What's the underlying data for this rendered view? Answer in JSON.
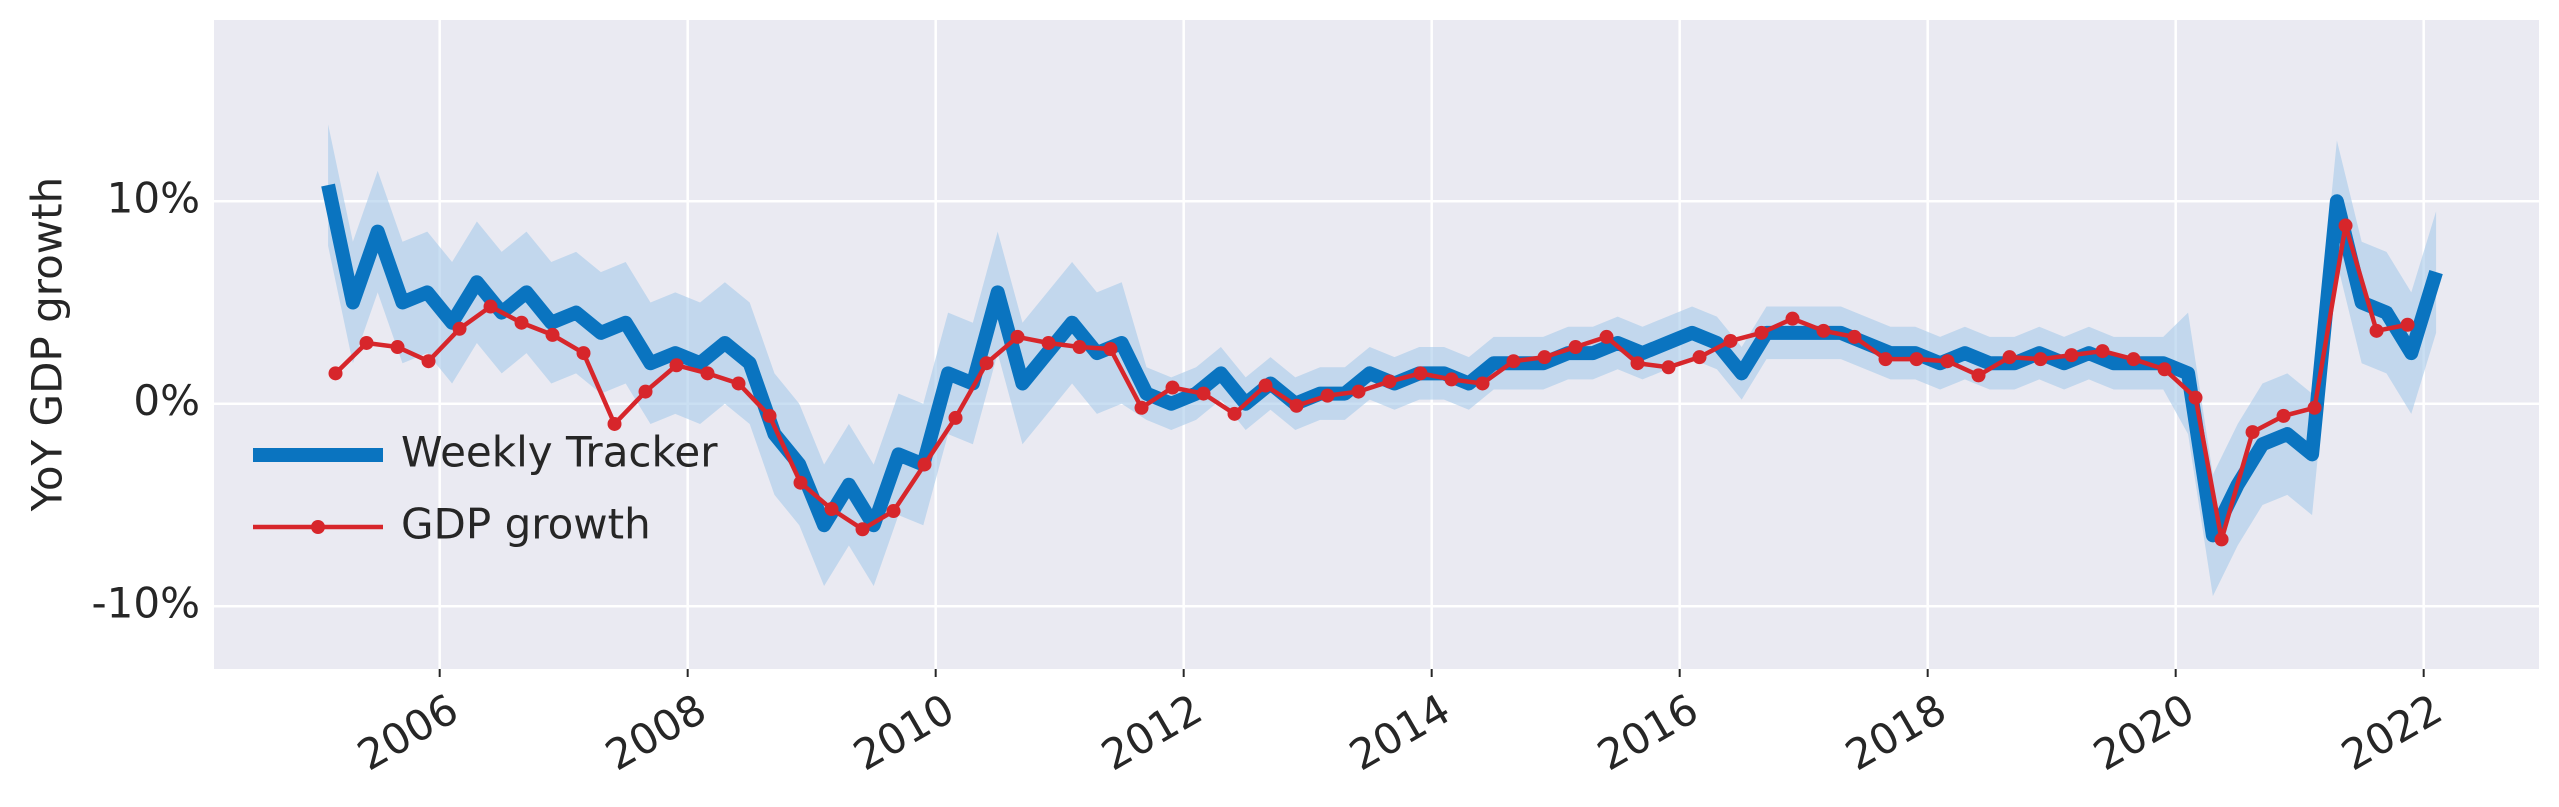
{
  "chart_data": {
    "type": "line",
    "y_label": "YoY GDP growth",
    "xlim": [
      2004.18,
      2022.93
    ],
    "xticks": [
      2006,
      2008,
      2010,
      2012,
      2014,
      2016,
      2018,
      2020,
      2022
    ],
    "ylim": [
      -13.1,
      18.95
    ],
    "yticks": [
      {
        "value": -10,
        "label": "-10%"
      },
      {
        "value": 0,
        "label": "0%"
      },
      {
        "value": 10,
        "label": "10%"
      }
    ],
    "grid": true,
    "legend": "lower left",
    "series": [
      {
        "name": "Weekly Tracker",
        "color": "#0a74c0",
        "band_color": "#a6c9ea",
        "x": [
          2005.1,
          2005.3,
          2005.5,
          2005.7,
          2005.9,
          2006.1,
          2006.3,
          2006.5,
          2006.7,
          2006.9,
          2007.1,
          2007.3,
          2007.5,
          2007.7,
          2007.9,
          2008.1,
          2008.3,
          2008.5,
          2008.7,
          2008.9,
          2009.1,
          2009.3,
          2009.5,
          2009.7,
          2009.9,
          2010.1,
          2010.3,
          2010.5,
          2010.7,
          2010.9,
          2011.1,
          2011.3,
          2011.5,
          2011.7,
          2011.9,
          2012.1,
          2012.3,
          2012.5,
          2012.7,
          2012.9,
          2013.1,
          2013.3,
          2013.5,
          2013.7,
          2013.9,
          2014.1,
          2014.3,
          2014.5,
          2014.7,
          2014.9,
          2015.1,
          2015.3,
          2015.5,
          2015.7,
          2015.9,
          2016.1,
          2016.3,
          2016.5,
          2016.7,
          2016.9,
          2017.1,
          2017.3,
          2017.5,
          2017.7,
          2017.9,
          2018.1,
          2018.3,
          2018.5,
          2018.7,
          2018.9,
          2019.1,
          2019.3,
          2019.5,
          2019.7,
          2019.9,
          2020.1,
          2020.3,
          2020.5,
          2020.7,
          2020.9,
          2021.1,
          2021.3,
          2021.5,
          2021.7,
          2021.9,
          2022.1
        ],
        "values": [
          10.8,
          5.0,
          8.5,
          5.0,
          5.5,
          4.0,
          6.0,
          4.5,
          5.5,
          4.0,
          4.5,
          3.5,
          4.0,
          2.0,
          2.5,
          2.0,
          3.0,
          2.0,
          -1.5,
          -3.0,
          -6.0,
          -4.0,
          -6.0,
          -2.5,
          -3.0,
          1.5,
          1.0,
          5.5,
          1.0,
          2.5,
          4.0,
          2.5,
          3.0,
          0.5,
          0.0,
          0.5,
          1.5,
          0.0,
          1.0,
          0.0,
          0.5,
          0.5,
          1.5,
          1.0,
          1.5,
          1.5,
          1.0,
          2.0,
          2.0,
          2.0,
          2.5,
          2.5,
          3.0,
          2.5,
          3.0,
          3.5,
          3.0,
          1.5,
          3.5,
          3.5,
          3.5,
          3.5,
          3.0,
          2.5,
          2.5,
          2.0,
          2.5,
          2.0,
          2.0,
          2.5,
          2.0,
          2.5,
          2.0,
          2.0,
          2.0,
          1.5,
          -6.5,
          -4.0,
          -2.0,
          -1.5,
          -2.5,
          10.0,
          5.0,
          4.5,
          2.5,
          6.5
        ],
        "lower": [
          7.8,
          2.0,
          5.5,
          2.0,
          2.5,
          1.0,
          3.0,
          1.5,
          2.5,
          1.0,
          1.5,
          0.5,
          1.0,
          -1.0,
          -0.5,
          -1.0,
          0.0,
          -1.0,
          -4.5,
          -6.0,
          -9.0,
          -7.0,
          -9.0,
          -5.5,
          -6.0,
          -1.5,
          -2.0,
          2.5,
          -2.0,
          -0.5,
          1.0,
          -0.5,
          0.0,
          -0.8,
          -1.3,
          -0.8,
          0.2,
          -1.3,
          -0.3,
          -1.3,
          -0.8,
          -0.8,
          0.2,
          -0.3,
          0.2,
          0.2,
          -0.3,
          0.7,
          0.7,
          0.7,
          1.2,
          1.2,
          1.7,
          1.2,
          1.7,
          2.2,
          1.7,
          0.2,
          2.2,
          2.2,
          2.2,
          2.2,
          1.7,
          1.2,
          1.2,
          0.7,
          1.2,
          0.7,
          0.7,
          1.2,
          0.7,
          1.2,
          0.7,
          0.7,
          0.7,
          -1.5,
          -9.5,
          -7.0,
          -5.0,
          -4.5,
          -5.5,
          7.0,
          2.0,
          1.5,
          -0.5,
          3.5
        ],
        "upper": [
          13.8,
          8.0,
          11.5,
          8.0,
          8.5,
          7.0,
          9.0,
          7.5,
          8.5,
          7.0,
          7.5,
          6.5,
          7.0,
          5.0,
          5.5,
          5.0,
          6.0,
          5.0,
          1.5,
          0.0,
          -3.0,
          -1.0,
          -3.0,
          0.5,
          0.0,
          4.5,
          4.0,
          8.5,
          4.0,
          5.5,
          7.0,
          5.5,
          6.0,
          1.8,
          1.3,
          1.8,
          2.8,
          1.3,
          2.3,
          1.3,
          1.8,
          1.8,
          2.8,
          2.3,
          2.8,
          2.8,
          2.3,
          3.3,
          3.3,
          3.3,
          3.8,
          3.8,
          4.3,
          3.8,
          4.3,
          4.8,
          4.3,
          2.8,
          4.8,
          4.8,
          4.8,
          4.8,
          4.3,
          3.8,
          3.8,
          3.3,
          3.8,
          3.3,
          3.3,
          3.8,
          3.3,
          3.8,
          3.3,
          3.3,
          3.3,
          4.5,
          -3.5,
          -1.0,
          1.0,
          1.5,
          0.5,
          13.0,
          8.0,
          7.5,
          5.5,
          9.5
        ]
      },
      {
        "name": "GDP growth",
        "color": "#d7262b",
        "markers": true,
        "x": [
          2005.16,
          2005.41,
          2005.66,
          2005.91,
          2006.16,
          2006.41,
          2006.66,
          2006.91,
          2007.16,
          2007.41,
          2007.66,
          2007.91,
          2008.16,
          2008.41,
          2008.66,
          2008.91,
          2009.16,
          2009.41,
          2009.66,
          2009.91,
          2010.16,
          2010.41,
          2010.66,
          2010.91,
          2011.16,
          2011.41,
          2011.66,
          2011.91,
          2012.16,
          2012.41,
          2012.66,
          2012.91,
          2013.16,
          2013.41,
          2013.66,
          2013.91,
          2014.16,
          2014.41,
          2014.66,
          2014.91,
          2015.16,
          2015.41,
          2015.66,
          2015.91,
          2016.16,
          2016.41,
          2016.66,
          2016.91,
          2017.16,
          2017.41,
          2017.66,
          2017.91,
          2018.16,
          2018.41,
          2018.66,
          2018.91,
          2019.16,
          2019.41,
          2019.66,
          2019.91,
          2020.16,
          2020.37,
          2020.62,
          2020.87,
          2021.12,
          2021.37,
          2021.62,
          2021.87
        ],
        "values": [
          1.5,
          3.0,
          2.8,
          2.1,
          3.7,
          4.8,
          4.0,
          3.4,
          2.5,
          -1.0,
          0.6,
          1.9,
          1.5,
          1.0,
          -0.6,
          -3.9,
          -5.2,
          -6.2,
          -5.3,
          -3.0,
          -0.7,
          2.0,
          3.3,
          3.0,
          2.8,
          2.7,
          -0.2,
          0.8,
          0.5,
          -0.5,
          0.9,
          -0.1,
          0.4,
          0.6,
          1.1,
          1.5,
          1.2,
          1.0,
          2.1,
          2.3,
          2.8,
          3.3,
          2.0,
          1.8,
          2.3,
          3.1,
          3.5,
          4.2,
          3.6,
          3.3,
          2.2,
          2.2,
          2.1,
          1.4,
          2.3,
          2.2,
          2.4,
          2.6,
          2.2,
          1.7,
          0.3,
          -6.7,
          -1.4,
          -0.6,
          -0.2,
          8.8,
          3.6,
          3.9
        ]
      }
    ]
  }
}
